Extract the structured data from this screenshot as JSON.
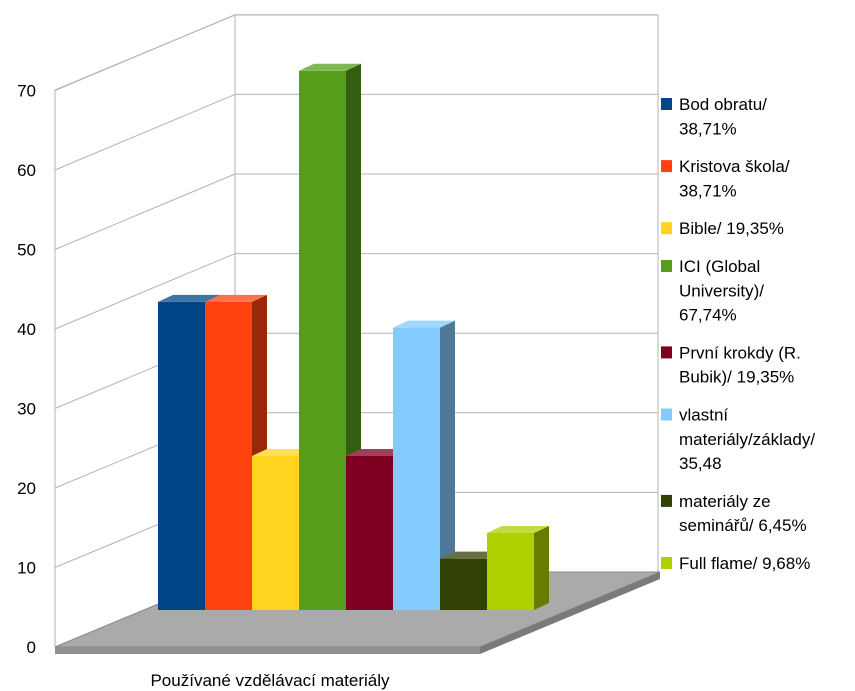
{
  "chart_data": {
    "type": "bar",
    "title": "",
    "xlabel": "Používané vzdělávací materiály",
    "ylabel": "",
    "ylim": [
      0,
      70
    ],
    "yticks": [
      "0",
      "10",
      "20",
      "30",
      "40",
      "50",
      "60",
      "70"
    ],
    "grid": true,
    "legend_position": "right",
    "series": [
      {
        "name": "Bod obratu/ 38,71%",
        "legend_lines": [
          "Bod obratu/",
          "38,71%"
        ],
        "value": 38.71,
        "color": "#004586"
      },
      {
        "name": "Kristova škola/ 38,71%",
        "legend_lines": [
          "Kristova škola/",
          "38,71%"
        ],
        "value": 38.71,
        "color": "#ff420e"
      },
      {
        "name": "Bible/ 19,35%",
        "legend_lines": [
          "Bible/ 19,35%"
        ],
        "value": 19.35,
        "color": "#ffd320"
      },
      {
        "name": "ICI (Global University)/ 67,74%",
        "legend_lines": [
          "ICI (Global",
          "University)/",
          "67,74%"
        ],
        "value": 67.74,
        "color": "#579d1c"
      },
      {
        "name": "První krokdy (R. Bubik)/ 19,35%",
        "legend_lines": [
          "První krokdy (R.",
          "Bubik)/ 19,35%"
        ],
        "value": 19.35,
        "color": "#7e0021"
      },
      {
        "name": "vlastní materiály/základy/ 35,48",
        "legend_lines": [
          "vlastní",
          "materiály/základy/",
          "35,48"
        ],
        "value": 35.48,
        "color": "#83caff"
      },
      {
        "name": "materiály ze seminářů/ 6,45%",
        "legend_lines": [
          "materiály ze",
          "seminářů/ 6,45%"
        ],
        "value": 6.45,
        "color": "#314004"
      },
      {
        "name": "Full flame/ 9,68%",
        "legend_lines": [
          "Full flame/ 9,68%"
        ],
        "value": 9.68,
        "color": "#aecf00"
      }
    ]
  }
}
